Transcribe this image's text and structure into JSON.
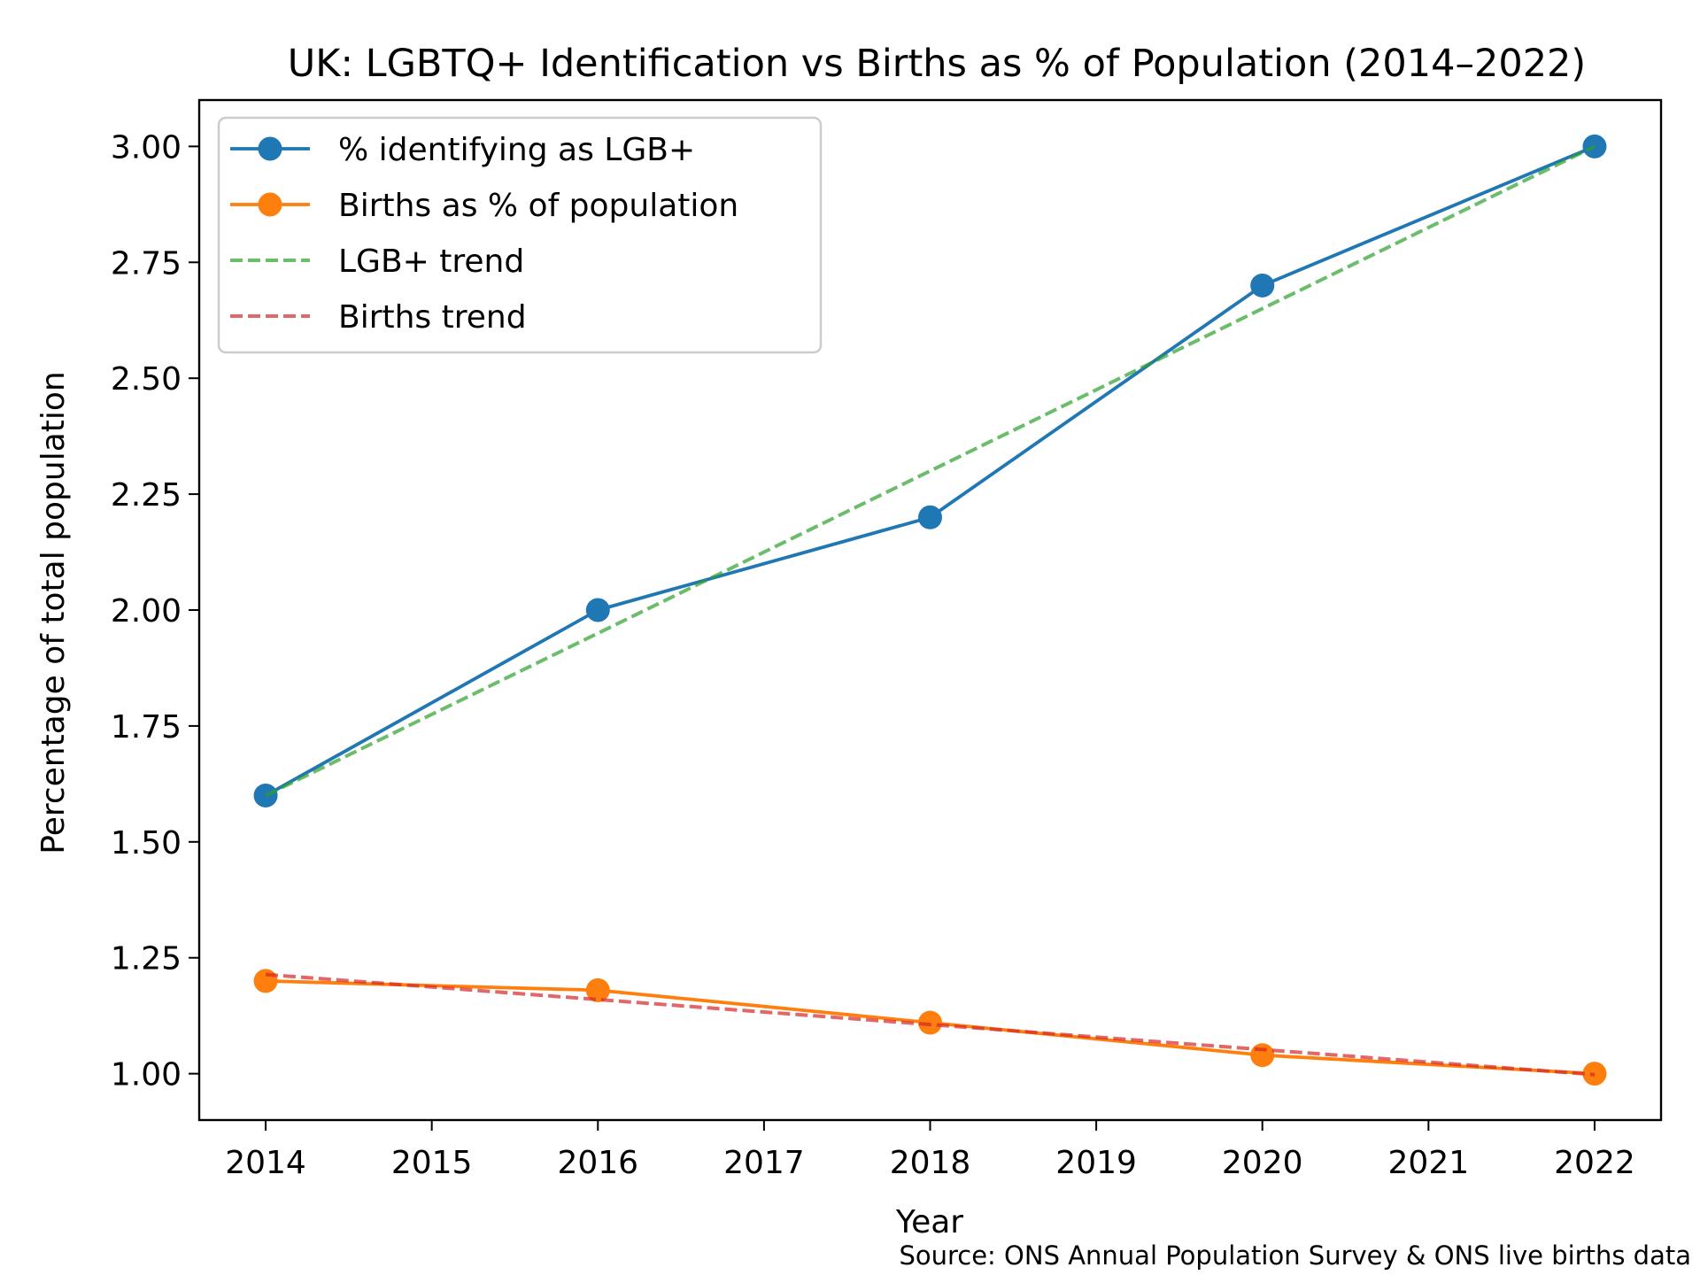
{
  "chart_data": {
    "type": "line",
    "title": "UK: LGBTQ+ Identification vs Births as % of Population (2014–2022)",
    "xlabel": "Year",
    "ylabel": "Percentage of total population",
    "source_note": "Source: ONS Annual Population Survey & ONS live births data",
    "x": [
      2014,
      2016,
      2018,
      2020,
      2022
    ],
    "xlim": [
      2013.6,
      2022.4
    ],
    "ylim": [
      0.9,
      3.1
    ],
    "x_ticks": [
      2014,
      2015,
      2016,
      2017,
      2018,
      2019,
      2020,
      2021,
      2022
    ],
    "x_tick_labels": [
      "2014",
      "2015",
      "2016",
      "2017",
      "2018",
      "2019",
      "2020",
      "2021",
      "2022"
    ],
    "y_ticks": [
      1.0,
      1.25,
      1.5,
      1.75,
      2.0,
      2.25,
      2.5,
      2.75,
      3.0
    ],
    "y_tick_labels": [
      "1.00",
      "1.25",
      "1.50",
      "1.75",
      "2.00",
      "2.25",
      "2.50",
      "2.75",
      "3.00"
    ],
    "grid": false,
    "legend_position": "top-left",
    "series": [
      {
        "name": "% identifying as LGB+",
        "style": "solid-markers",
        "color": "#1f77b4",
        "x": [
          2014,
          2016,
          2018,
          2020,
          2022
        ],
        "values": [
          1.6,
          2.0,
          2.2,
          2.7,
          3.0
        ]
      },
      {
        "name": "Births as % of population",
        "style": "solid-markers",
        "color": "#ff7f0e",
        "x": [
          2014,
          2016,
          2018,
          2020,
          2022
        ],
        "values": [
          1.2,
          1.18,
          1.11,
          1.04,
          1.0
        ]
      },
      {
        "name": "LGB+ trend",
        "style": "dashed",
        "color": "#2ca02c",
        "x": [
          2014,
          2016,
          2018,
          2020,
          2022
        ],
        "values": [
          1.6,
          1.95,
          2.3,
          2.65,
          3.0
        ]
      },
      {
        "name": "Births trend",
        "style": "dashed",
        "color": "#d62728",
        "x": [
          2014,
          2016,
          2018,
          2020,
          2022
        ],
        "values": [
          1.214,
          1.16,
          1.106,
          1.052,
          0.998
        ]
      }
    ]
  }
}
